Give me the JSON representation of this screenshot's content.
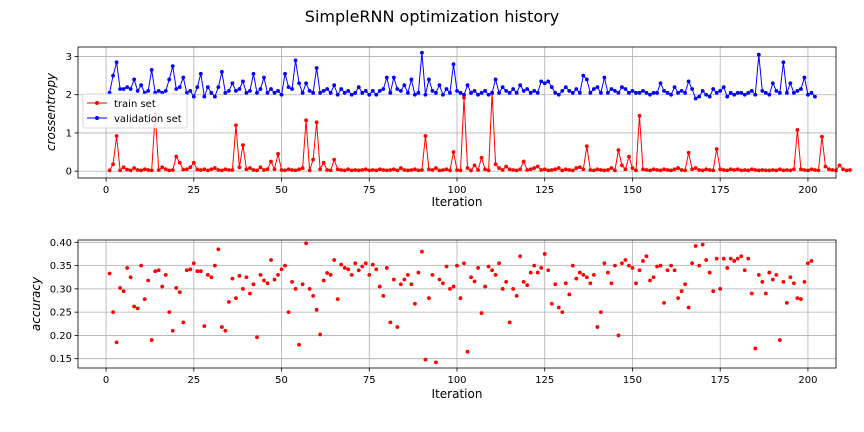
{
  "figure": {
    "title": "SimpleRNN optimization history"
  },
  "chart_data": [
    {
      "type": "line",
      "xlabel": "Iteration",
      "ylabel": "crossentropy",
      "xlim": [
        -8,
        208
      ],
      "ylim": [
        -0.18,
        3.25
      ],
      "xticks": [
        0,
        25,
        50,
        75,
        100,
        125,
        150,
        175,
        200
      ],
      "yticks": [
        0,
        1,
        2,
        3
      ],
      "grid": true,
      "legend_position": "upper-left",
      "x_start": 1,
      "series": [
        {
          "name": "train set",
          "color": "#ff0000",
          "marker": "circle",
          "values": [
            0.02,
            0.18,
            0.92,
            0.02,
            0.1,
            0.04,
            0.02,
            0.08,
            0.03,
            0.02,
            0.05,
            0.03,
            0.02,
            1.5,
            0.03,
            0.1,
            0.05,
            0.02,
            0.03,
            0.38,
            0.22,
            0.04,
            0.05,
            0.1,
            0.22,
            0.04,
            0.03,
            0.05,
            0.02,
            0.05,
            0.08,
            0.03,
            0.02,
            0.05,
            0.03,
            0.03,
            1.2,
            0.1,
            0.68,
            0.05,
            0.08,
            0.03,
            0.02,
            0.1,
            0.03,
            0.05,
            0.25,
            0.05,
            0.45,
            0.03,
            0.02,
            0.05,
            0.03,
            0.02,
            0.05,
            0.08,
            1.33,
            0.02,
            0.3,
            1.28,
            0.05,
            0.22,
            0.03,
            0.02,
            0.3,
            0.05,
            0.03,
            0.02,
            0.05,
            0.02,
            0.03,
            0.02,
            0.03,
            0.05,
            0.02,
            0.03,
            0.02,
            0.05,
            0.03,
            0.02,
            0.03,
            0.05,
            0.02,
            0.08,
            0.03,
            0.02,
            0.03,
            0.05,
            0.02,
            0.03,
            0.92,
            0.05,
            0.03,
            0.08,
            0.02,
            0.03,
            0.05,
            0.02,
            0.5,
            0.03,
            0.02,
            1.92,
            0.08,
            0.02,
            0.15,
            0.03,
            0.35,
            0.05,
            0.02,
            2.05,
            0.18,
            0.08,
            0.03,
            0.12,
            0.05,
            0.03,
            0.02,
            0.05,
            0.25,
            0.03,
            0.05,
            0.08,
            0.12,
            0.03,
            0.05,
            0.02,
            0.03,
            0.05,
            0.08,
            0.02,
            0.05,
            0.03,
            0.02,
            0.08,
            0.1,
            0.05,
            0.65,
            0.03,
            0.02,
            0.05,
            0.03,
            0.02,
            0.03,
            0.08,
            0.02,
            0.55,
            0.15,
            0.05,
            0.38,
            0.08,
            0.02,
            1.45,
            0.05,
            0.03,
            0.02,
            0.05,
            0.03,
            0.02,
            0.05,
            0.03,
            0.02,
            0.05,
            0.08,
            0.03,
            0.02,
            0.48,
            0.05,
            0.08,
            0.03,
            0.02,
            0.05,
            0.03,
            0.02,
            0.58,
            0.05,
            0.03,
            0.02,
            0.05,
            0.03,
            0.05,
            0.02,
            0.03,
            0.02,
            0.05,
            0.03,
            0.02,
            0.03,
            0.02,
            0.02,
            0.03,
            0.02,
            0.05,
            0.02,
            0.03,
            0.02,
            0.05,
            1.08,
            0.05,
            0.03,
            0.02,
            0.05,
            0.03,
            0.02,
            0.9,
            0.12,
            0.05,
            0.03,
            0.02,
            0.15,
            0.05,
            0.02,
            0.03
          ]
        },
        {
          "name": "validation set",
          "color": "#0000ff",
          "marker": "circle",
          "values": [
            2.05,
            2.5,
            2.85,
            2.15,
            2.15,
            2.2,
            2.15,
            2.4,
            2.1,
            2.25,
            2.05,
            2.1,
            2.65,
            2.05,
            2.1,
            2.05,
            2.1,
            2.4,
            2.75,
            2.15,
            2.2,
            2.45,
            2.05,
            2.1,
            1.95,
            2.2,
            2.55,
            1.95,
            2.2,
            2.05,
            1.95,
            2.2,
            2.6,
            2.05,
            2.1,
            2.3,
            2.1,
            2.15,
            2.35,
            2.05,
            2.1,
            2.55,
            2.05,
            2.15,
            2.45,
            2.05,
            2.15,
            2.05,
            2.1,
            2.0,
            2.55,
            2.2,
            2.15,
            2.9,
            2.3,
            2.05,
            2.3,
            2.1,
            2.05,
            2.7,
            2.05,
            2.1,
            2.15,
            2.05,
            2.25,
            2.0,
            2.15,
            2.05,
            2.1,
            2.0,
            2.05,
            2.2,
            2.05,
            2.1,
            2.0,
            2.1,
            2.0,
            2.1,
            2.15,
            2.45,
            2.05,
            2.45,
            2.15,
            2.1,
            2.25,
            2.05,
            2.4,
            2.0,
            2.05,
            3.1,
            2.0,
            2.4,
            2.1,
            2.05,
            2.25,
            2.0,
            2.15,
            2.05,
            2.8,
            2.1,
            2.05,
            2.0,
            2.25,
            2.05,
            2.1,
            2.0,
            2.05,
            2.1,
            2.0,
            2.05,
            2.4,
            2.05,
            2.2,
            2.1,
            2.05,
            2.15,
            2.05,
            2.25,
            2.1,
            2.15,
            2.05,
            2.1,
            2.05,
            2.35,
            2.3,
            2.35,
            2.2,
            2.05,
            2.0,
            2.1,
            2.2,
            2.1,
            2.05,
            2.15,
            2.05,
            2.5,
            2.4,
            2.05,
            2.15,
            2.2,
            2.05,
            2.45,
            2.05,
            2.15,
            2.1,
            2.05,
            2.2,
            2.15,
            2.05,
            2.1,
            2.05,
            2.05,
            2.1,
            2.05,
            2.0,
            2.05,
            2.05,
            2.3,
            2.1,
            2.05,
            2.0,
            2.2,
            2.05,
            2.1,
            2.05,
            2.35,
            2.15,
            1.9,
            1.95,
            2.1,
            2.0,
            1.95,
            2.15,
            2.05,
            2.1,
            2.2,
            1.95,
            2.05,
            2.0,
            2.05,
            2.05,
            2.0,
            2.05,
            2.1,
            2.0,
            3.05,
            2.1,
            2.05,
            2.0,
            2.3,
            2.1,
            2.05,
            2.85,
            2.05,
            2.3,
            2.05,
            2.1,
            2.15,
            2.45,
            2.0,
            2.05,
            1.95
          ]
        }
      ]
    },
    {
      "type": "scatter",
      "xlabel": "Iteration",
      "ylabel": "accuracy",
      "xlim": [
        -8,
        208
      ],
      "ylim": [
        0.13,
        0.405
      ],
      "xticks": [
        0,
        25,
        50,
        75,
        100,
        125,
        150,
        175,
        200
      ],
      "yticks": [
        0.15,
        0.2,
        0.25,
        0.3,
        0.35,
        0.4
      ],
      "grid": true,
      "x_start": 1,
      "series": [
        {
          "color": "#ff0000",
          "marker": "circle",
          "values": [
            0.333,
            0.25,
            0.185,
            0.302,
            0.295,
            0.345,
            0.325,
            0.262,
            0.258,
            0.35,
            0.278,
            0.318,
            0.19,
            0.338,
            0.34,
            0.305,
            0.33,
            0.25,
            0.21,
            0.302,
            0.293,
            0.228,
            0.34,
            0.342,
            0.355,
            0.338,
            0.338,
            0.22,
            0.33,
            0.325,
            0.35,
            0.385,
            0.218,
            0.21,
            0.272,
            0.322,
            0.28,
            0.328,
            0.3,
            0.325,
            0.29,
            0.31,
            0.196,
            0.33,
            0.318,
            0.312,
            0.362,
            0.32,
            0.33,
            0.342,
            0.35,
            0.25,
            0.315,
            0.3,
            0.18,
            0.31,
            0.398,
            0.3,
            0.285,
            0.255,
            0.202,
            0.318,
            0.334,
            0.33,
            0.362,
            0.278,
            0.352,
            0.345,
            0.342,
            0.33,
            0.355,
            0.34,
            0.348,
            0.355,
            0.33,
            0.352,
            0.342,
            0.305,
            0.285,
            0.345,
            0.228,
            0.32,
            0.218,
            0.31,
            0.32,
            0.33,
            0.31,
            0.268,
            0.335,
            0.38,
            0.148,
            0.28,
            0.33,
            0.142,
            0.32,
            0.312,
            0.348,
            0.3,
            0.305,
            0.35,
            0.28,
            0.355,
            0.165,
            0.325,
            0.316,
            0.345,
            0.248,
            0.305,
            0.348,
            0.34,
            0.33,
            0.355,
            0.3,
            0.315,
            0.228,
            0.3,
            0.285,
            0.37,
            0.315,
            0.308,
            0.335,
            0.35,
            0.335,
            0.345,
            0.375,
            0.34,
            0.268,
            0.31,
            0.26,
            0.25,
            0.312,
            0.288,
            0.35,
            0.322,
            0.335,
            0.33,
            0.325,
            0.312,
            0.33,
            0.218,
            0.25,
            0.355,
            0.335,
            0.312,
            0.35,
            0.2,
            0.355,
            0.362,
            0.35,
            0.345,
            0.312,
            0.34,
            0.36,
            0.37,
            0.318,
            0.325,
            0.348,
            0.35,
            0.27,
            0.34,
            0.35,
            0.34,
            0.28,
            0.295,
            0.31,
            0.26,
            0.355,
            0.392,
            0.35,
            0.395,
            0.362,
            0.335,
            0.295,
            0.365,
            0.3,
            0.365,
            0.345,
            0.365,
            0.36,
            0.365,
            0.37,
            0.34,
            0.365,
            0.29,
            0.172,
            0.33,
            0.315,
            0.29,
            0.335,
            0.32,
            0.33,
            0.19,
            0.315,
            0.27,
            0.325,
            0.312,
            0.28,
            0.278,
            0.315,
            0.355,
            0.36
          ]
        }
      ]
    }
  ]
}
